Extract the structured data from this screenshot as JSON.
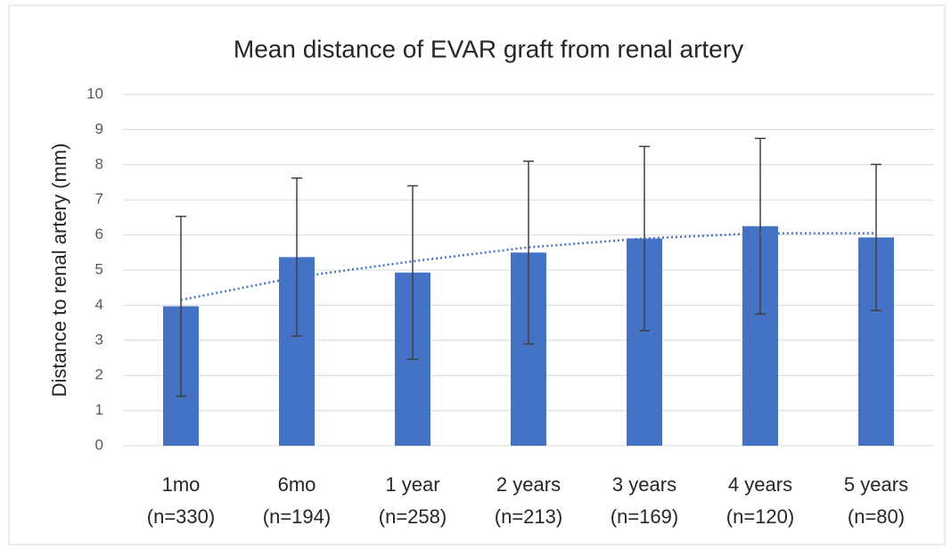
{
  "chart_data": {
    "type": "bar",
    "title": "Mean distance of EVAR graft from renal artery",
    "y_label": "Distance to renal artery (mm)",
    "categories": [
      "1mo",
      "6mo",
      "1 year",
      "2 years",
      "3 years",
      "4 years",
      "5 years"
    ],
    "sample_sizes": [
      "(n=330)",
      "(n=194)",
      "(n=258)",
      "(n=213)",
      "(n=169)",
      "(n=120)",
      "(n=80)"
    ],
    "values": [
      3.97,
      5.37,
      4.93,
      5.5,
      5.9,
      6.25,
      5.93
    ],
    "errors": [
      2.56,
      2.25,
      2.47,
      2.6,
      2.62,
      2.5,
      2.08
    ],
    "color": "#4472c4",
    "error_color": "#404040",
    "trendline": {
      "values": [
        4.15,
        4.8,
        5.25,
        5.65,
        5.9,
        6.05,
        6.05
      ],
      "color": "#4472c4"
    },
    "ylim": [
      0,
      10
    ],
    "yticks": [
      0,
      1,
      2,
      3,
      4,
      5,
      6,
      7,
      8,
      9,
      10
    ],
    "grid": true
  }
}
